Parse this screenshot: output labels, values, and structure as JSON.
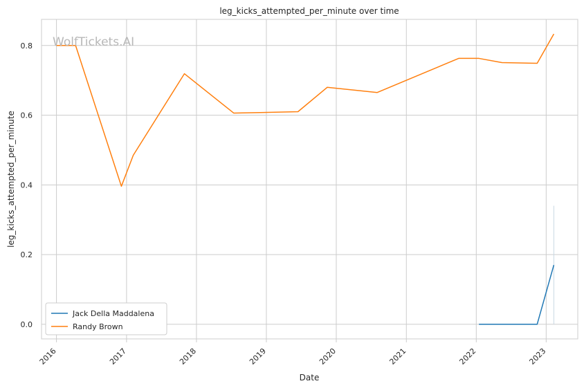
{
  "chart_data": {
    "type": "line",
    "title": "leg_kicks_attempted_per_minute over time",
    "xlabel": "Date",
    "ylabel": "leg_kicks_attempted_per_minute",
    "watermark": "WolfTickets.AI",
    "xlim": [
      "2015-10-15",
      "2023-06-15"
    ],
    "ylim": [
      -0.042,
      0.875
    ],
    "x_ticks": [
      "2016",
      "2017",
      "2018",
      "2019",
      "2020",
      "2021",
      "2022",
      "2023"
    ],
    "y_ticks": [
      0.0,
      0.2,
      0.4,
      0.6,
      0.8
    ],
    "y_tick_labels": [
      "0.0",
      "0.2",
      "0.4",
      "0.6",
      "0.8"
    ],
    "grid": true,
    "legend_position": "lower-left",
    "series": [
      {
        "name": "Jack Della Maddalena",
        "color": "#1f77b4",
        "x": [
          "2022-01-15",
          "2022-11-15",
          "2023-02-10"
        ],
        "y": [
          0.0,
          0.0,
          0.17
        ]
      },
      {
        "name": "Randy Brown",
        "color": "#ff7f0e",
        "x": [
          "2016-01-01",
          "2016-04-10",
          "2016-12-05",
          "2017-02-05",
          "2017-10-30",
          "2018-07-15",
          "2019-06-15",
          "2019-11-15",
          "2020-08-01",
          "2021-10-01",
          "2022-01-15",
          "2022-05-15",
          "2022-11-15",
          "2023-02-10"
        ],
        "y": [
          0.8,
          0.8,
          0.396,
          0.485,
          0.719,
          0.606,
          0.61,
          0.68,
          0.665,
          0.763,
          0.763,
          0.751,
          0.749,
          0.833
        ]
      }
    ]
  }
}
